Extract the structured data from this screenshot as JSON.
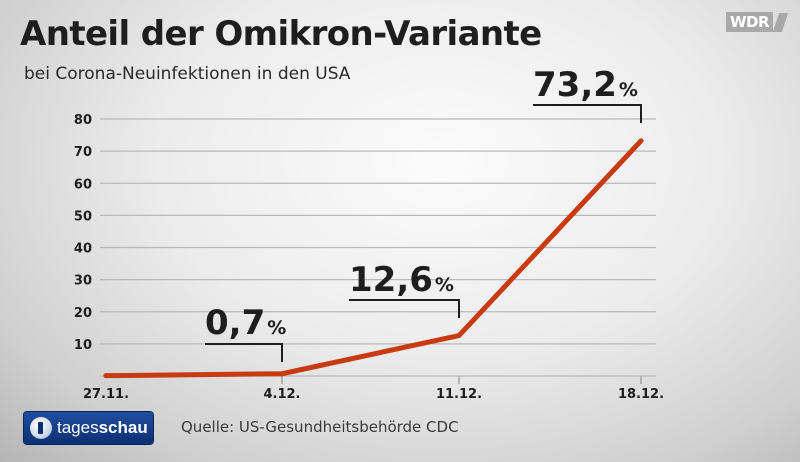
{
  "header": {
    "title": "Anteil der Omikron-Variante",
    "subtitle": "bei Corona-Neuinfektionen in den USA"
  },
  "broadcaster": {
    "wdr_label": "WDR"
  },
  "footer": {
    "logo_prefix": "tages",
    "logo_suffix": "schau",
    "source": "Quelle: US-Gesundheitsbehörde CDC"
  },
  "colors": {
    "line": "#c83b12",
    "text": "#1e1e1e",
    "grid": "#b9b9b9"
  },
  "chart_data": {
    "type": "line",
    "title": "Anteil der Omikron-Variante",
    "subtitle": "bei Corona-Neuinfektionen in den USA",
    "categories": [
      "27.11.",
      "4.12.",
      "11.12.",
      "18.12."
    ],
    "series": [
      {
        "values": [
          0.1,
          0.7,
          12.6,
          73.2
        ]
      }
    ],
    "yticks": [
      10,
      20,
      30,
      40,
      50,
      60,
      70,
      80
    ],
    "ylim": [
      0,
      80
    ],
    "grid": true,
    "annotations": [
      {
        "index": 1,
        "value": "0,7",
        "unit": "%"
      },
      {
        "index": 2,
        "value": "12,6",
        "unit": "%"
      },
      {
        "index": 3,
        "value": "73,2",
        "unit": "%"
      }
    ]
  }
}
